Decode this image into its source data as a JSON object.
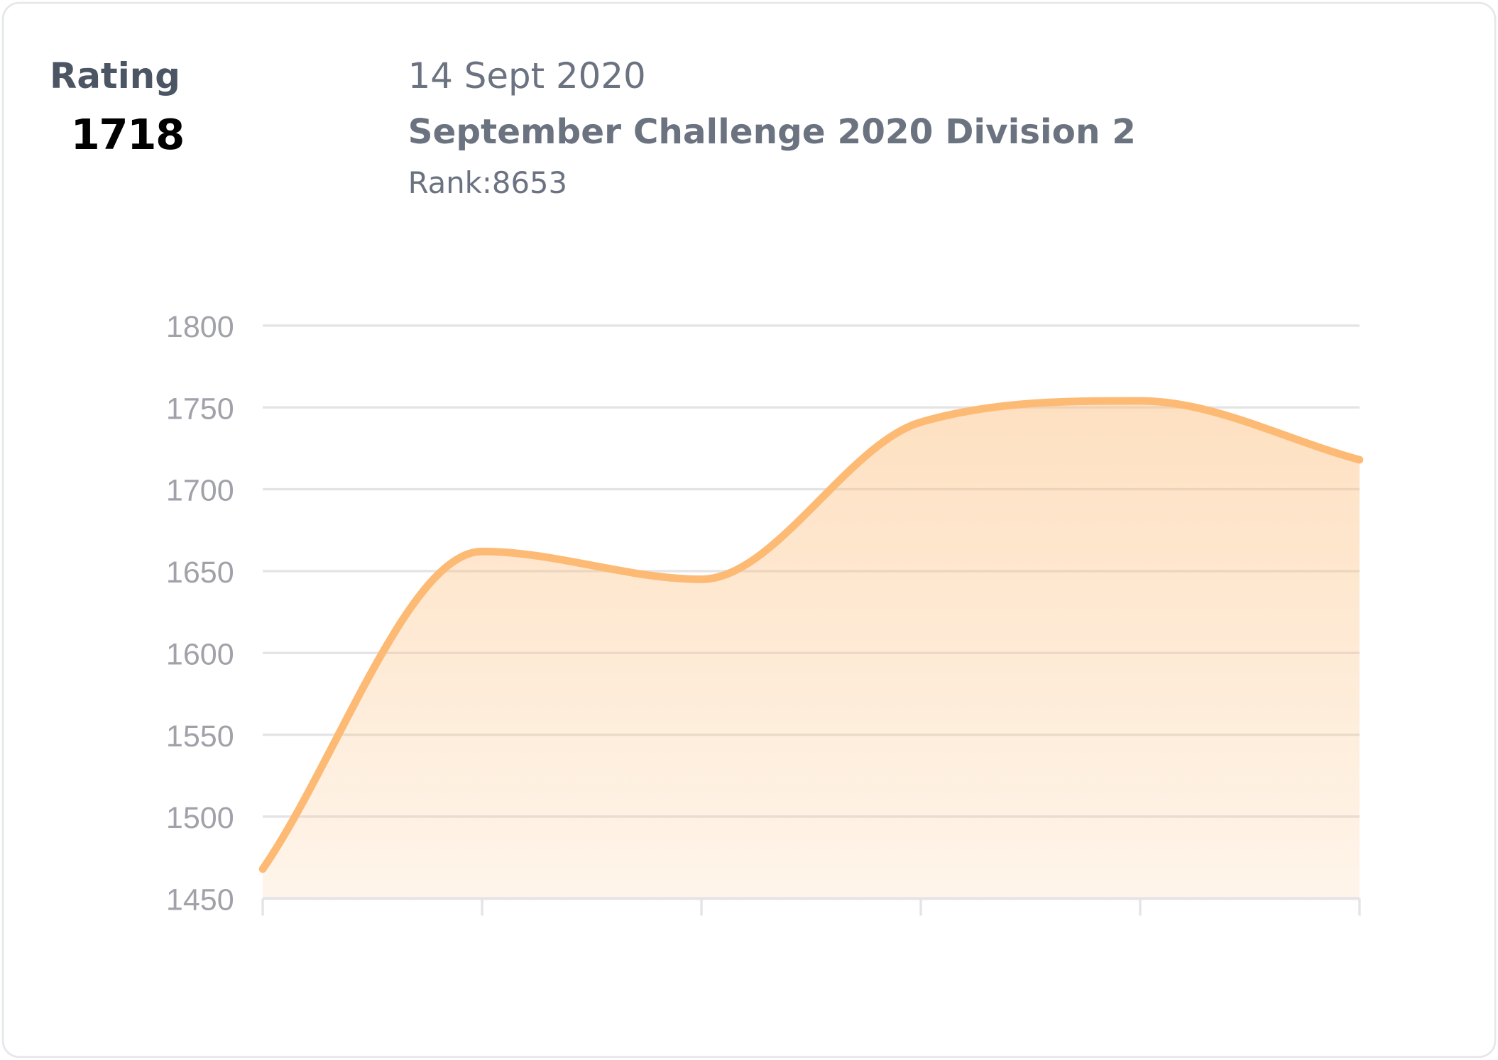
{
  "header": {
    "rating_label": "Rating",
    "rating_value": "1718",
    "date": "14 Sept 2020",
    "contest_name": "September Challenge 2020 Division 2",
    "rank": "Rank:8653"
  },
  "colors": {
    "line": "#fdba74",
    "fill": "#fdba74",
    "grid": "#e4e4e7",
    "tick_text": "#a1a1aa"
  },
  "chart_data": {
    "type": "area",
    "x": [
      1,
      2,
      3,
      4,
      5,
      6
    ],
    "values": [
      1468,
      1662,
      1645,
      1741,
      1754,
      1718
    ],
    "ylim": [
      1450,
      1800
    ],
    "yticks": [
      "1450",
      "1500",
      "1550",
      "1600",
      "1650",
      "1700",
      "1750",
      "1800"
    ],
    "grid": true,
    "curve": "smooth"
  }
}
